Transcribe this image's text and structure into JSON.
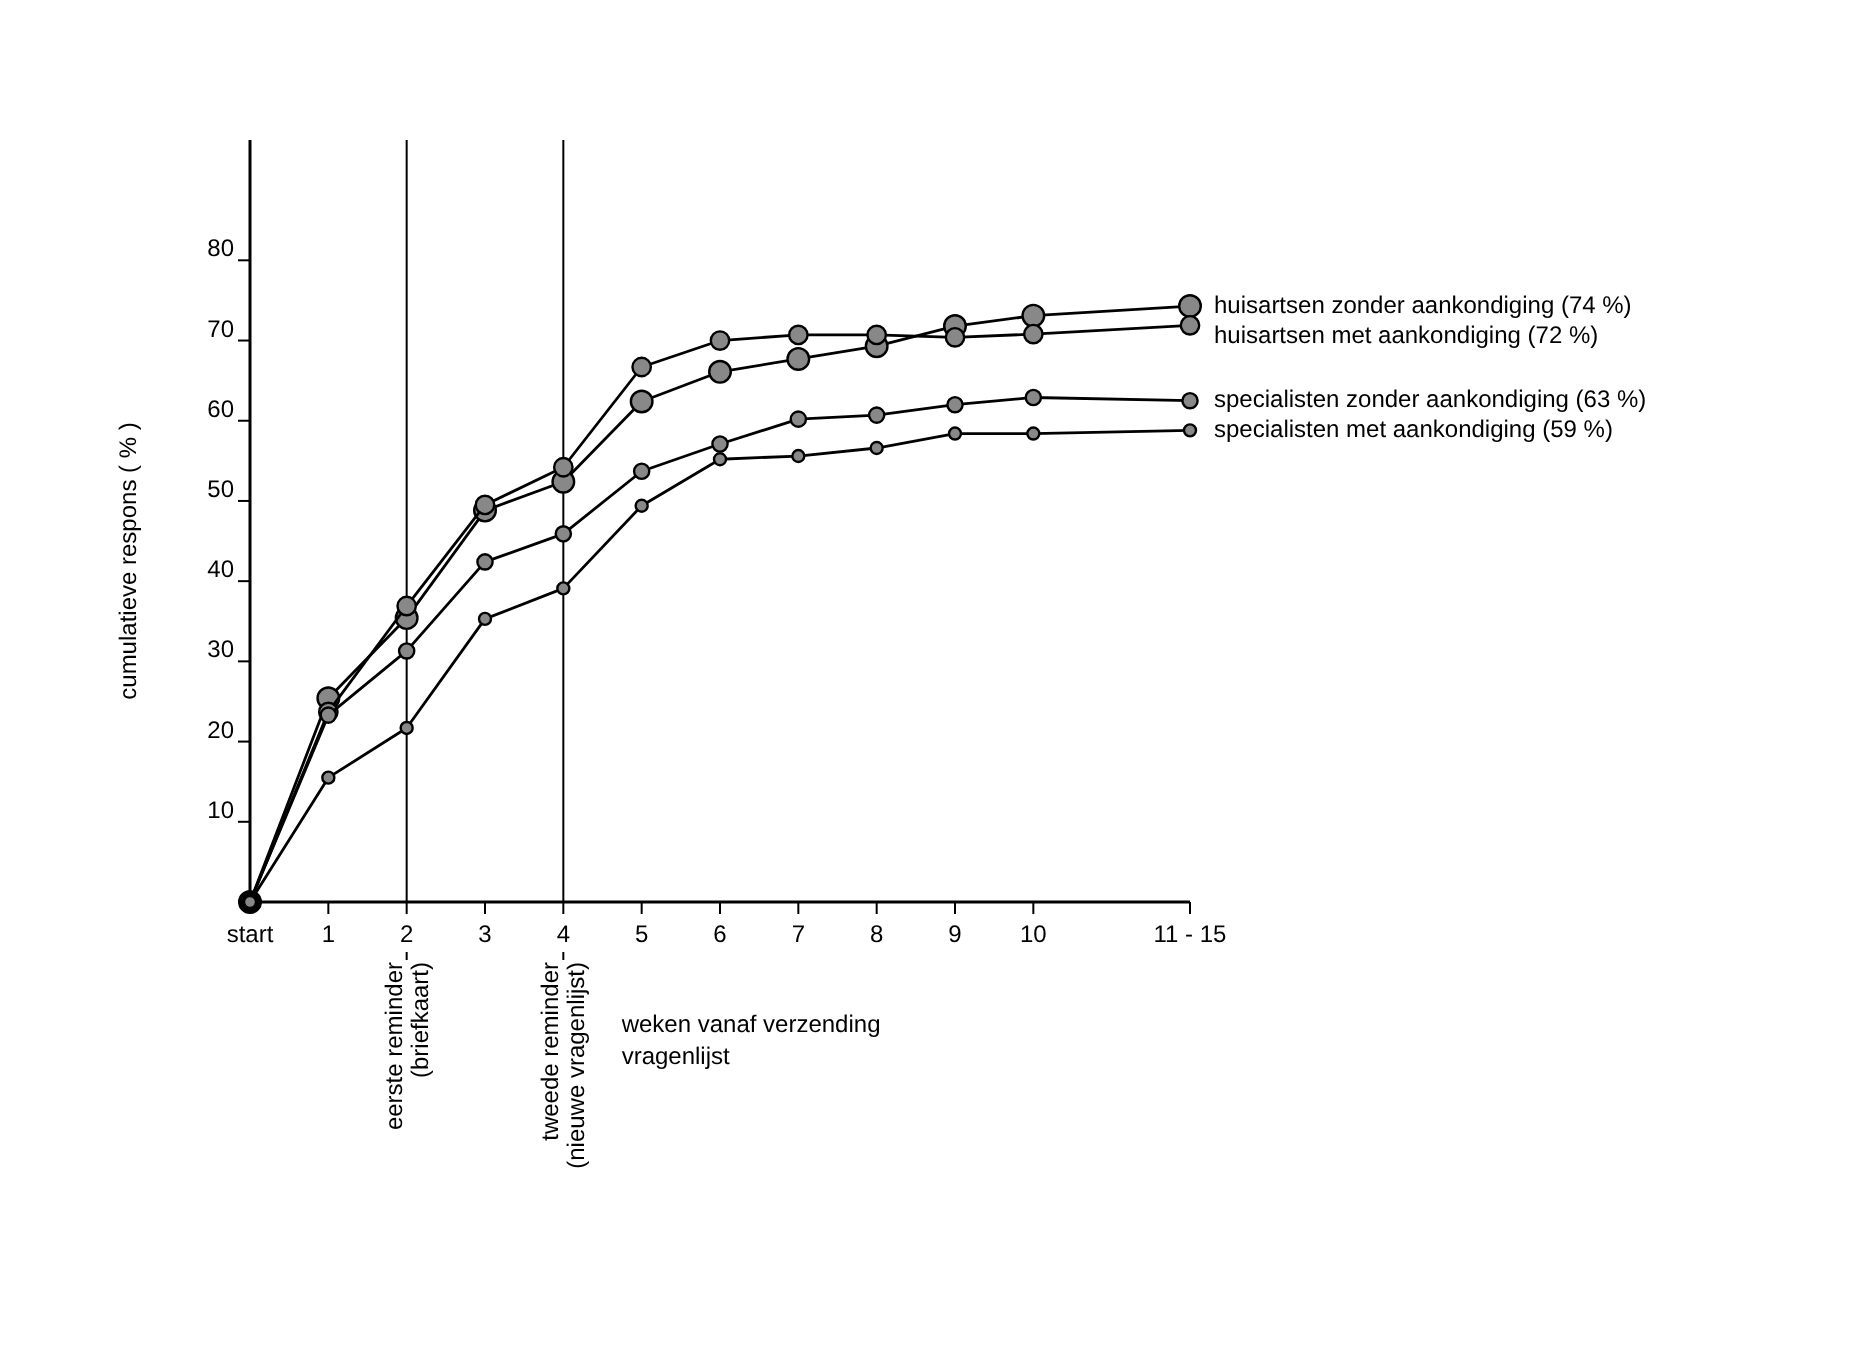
{
  "chart_data": {
    "type": "line",
    "xlabel": "weken vanaf verzending\nvragenlijst",
    "ylabel": "cumulatieve respons   ( % )",
    "x": [
      0,
      1,
      2,
      3,
      4,
      5,
      6,
      7,
      8,
      9,
      10,
      12
    ],
    "xlim": [
      0,
      12
    ],
    "xticks": [
      {
        "value": 0,
        "label": "start"
      },
      1,
      2,
      3,
      4,
      5,
      6,
      7,
      8,
      9,
      10,
      {
        "value": 12,
        "label": "11 - 15"
      }
    ],
    "ylim": [
      0,
      95
    ],
    "yticks": [
      10,
      20,
      30,
      40,
      50,
      60,
      70,
      80
    ],
    "grid": false,
    "legend": false,
    "marker": "circle",
    "line_style": "solid",
    "series": [
      {
        "name": "huisartsen zonder aankondiging (74 %)",
        "color": "#000000",
        "values": [
          0,
          25.4,
          35.4,
          48.8,
          52.4,
          62.4,
          66.1,
          67.7,
          69.3,
          71.8,
          73.1,
          74.3
        ]
      },
      {
        "name": "huisartsen met aankondiging (72 %)",
        "color": "#000000",
        "values": [
          0,
          23.7,
          36.9,
          49.5,
          54.2,
          66.7,
          70,
          70.7,
          70.7,
          70.4,
          70.8,
          71.9
        ]
      },
      {
        "name": "specialisten zonder aankondiging (63 %)",
        "color": "#000000",
        "values": [
          0,
          23.3,
          31.3,
          42.4,
          45.9,
          53.7,
          57.1,
          60.2,
          60.7,
          62,
          62.9,
          62.5
        ]
      },
      {
        "name": "specialisten met aankondiging (59 %)",
        "color": "#000000",
        "values": [
          0,
          15.5,
          21.7,
          35.3,
          39.1,
          49.4,
          55.2,
          55.6,
          56.6,
          58.4,
          58.4,
          58.8
        ]
      }
    ],
    "ref_lines": [
      {
        "axis": "x",
        "value": 2,
        "label": "eerste reminder\n(briefkaart)",
        "color": "#000000"
      },
      {
        "axis": "x",
        "value": 4,
        "label": "tweede reminder\n(nieuwe vragenlijst)",
        "color": "#000000"
      }
    ]
  }
}
